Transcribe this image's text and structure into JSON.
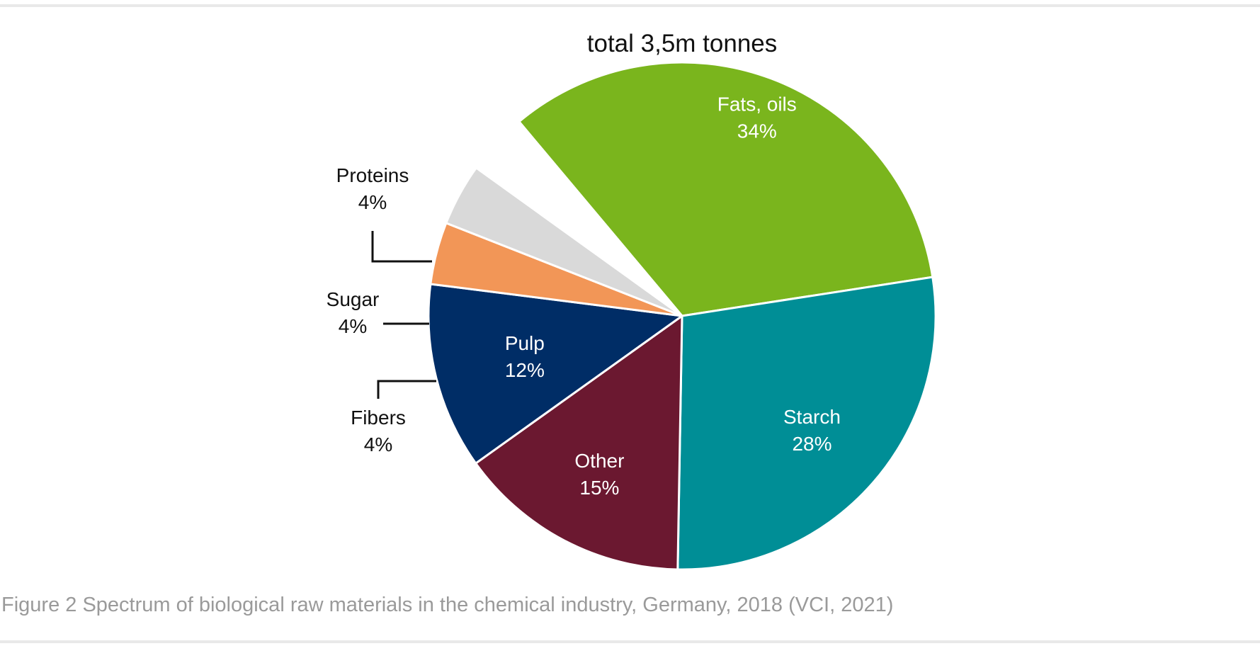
{
  "caption": "Figure 2 Spectrum of biological raw materials in the chemical industry, Germany, 2018 (VCI, 2021)",
  "chart_data": {
    "type": "pie",
    "title": "total 3,5m tonnes",
    "unit": "%",
    "legend": "none",
    "slices": [
      {
        "label": "Fats, oils",
        "value": 34,
        "value_label": "34%",
        "color": "#7ab51d",
        "label_position": "inside",
        "label_color": "#ffffff"
      },
      {
        "label": "Starch",
        "value": 28,
        "value_label": "28%",
        "color": "#008e96",
        "label_position": "inside",
        "label_color": "#ffffff"
      },
      {
        "label": "Other",
        "value": 15,
        "value_label": "15%",
        "color": "#6b1830",
        "label_position": "inside",
        "label_color": "#ffffff"
      },
      {
        "label": "Pulp",
        "value": 12,
        "value_label": "12%",
        "color": "#002d66",
        "label_position": "inside",
        "label_color": "#ffffff"
      },
      {
        "label": "Fibers",
        "value": 4,
        "value_label": "4%",
        "color": "#f29657",
        "label_position": "outside",
        "label_color": "#111111"
      },
      {
        "label": "Sugar",
        "value": 4,
        "value_label": "4%",
        "color": "#d9d9d9",
        "label_position": "outside",
        "label_color": "#111111"
      },
      {
        "label": "Proteins",
        "value": 4,
        "value_label": "4%",
        "color": "#ffffff",
        "label_position": "outside",
        "label_color": "#111111"
      }
    ]
  }
}
